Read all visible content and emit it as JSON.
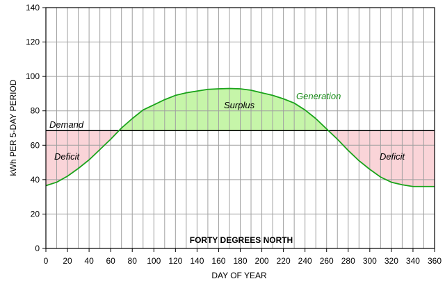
{
  "chart_data": {
    "type": "area",
    "title": "FORTY DEGREES NORTH",
    "xlabel": "DAY OF YEAR",
    "ylabel": "kWh PER 5-DAY PERIOD",
    "xlim": [
      0,
      360
    ],
    "ylim": [
      0,
      140
    ],
    "x_ticks": [
      0,
      20,
      40,
      60,
      80,
      100,
      120,
      140,
      160,
      180,
      200,
      220,
      240,
      260,
      280,
      300,
      320,
      340,
      360
    ],
    "y_ticks": [
      0,
      20,
      40,
      60,
      80,
      100,
      120,
      140
    ],
    "x_grid_step": 10,
    "grid": true,
    "demand": {
      "name": "Demand",
      "value": 68.5
    },
    "generation": {
      "name": "Generation",
      "x": [
        0,
        10,
        20,
        30,
        40,
        50,
        60,
        70,
        80,
        90,
        100,
        110,
        120,
        130,
        140,
        150,
        160,
        170,
        180,
        190,
        200,
        210,
        220,
        230,
        240,
        250,
        260,
        270,
        280,
        290,
        300,
        310,
        320,
        330,
        340,
        350,
        360
      ],
      "y": [
        36.5,
        38.5,
        42,
        46.5,
        51.5,
        57.5,
        63.5,
        70,
        75.5,
        80.5,
        83.5,
        86.5,
        89,
        90.5,
        91.5,
        92.5,
        92.8,
        93,
        92.8,
        92,
        90.5,
        89,
        87,
        84.5,
        80.5,
        75.5,
        69.5,
        63.5,
        57,
        51,
        46,
        41.5,
        38.5,
        37,
        36,
        36,
        36
      ]
    },
    "annotations": [
      "Surplus",
      "Deficit",
      "Deficit"
    ],
    "colors": {
      "generation": "#1aa31a",
      "demand": "#000000",
      "surplus_fill": "#c6f5a9",
      "deficit_fill": "#fad4d8",
      "grid": "#a0a0a0"
    }
  }
}
